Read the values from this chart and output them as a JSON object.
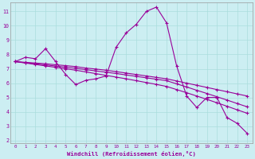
{
  "xlabel": "Windchill (Refroidissement éolien,°C)",
  "bg_color": "#cceef2",
  "grid_color": "#aadddd",
  "line_color": "#990099",
  "xlim": [
    -0.5,
    23.5
  ],
  "ylim": [
    1.8,
    11.6
  ],
  "yticks": [
    2,
    3,
    4,
    5,
    6,
    7,
    8,
    9,
    10,
    11
  ],
  "xticks": [
    0,
    1,
    2,
    3,
    4,
    5,
    6,
    7,
    8,
    9,
    10,
    11,
    12,
    13,
    14,
    15,
    16,
    17,
    18,
    19,
    20,
    21,
    22,
    23
  ],
  "series": [
    [
      7.5,
      7.8,
      7.7,
      8.4,
      7.5,
      6.6,
      5.9,
      6.2,
      6.3,
      6.5,
      8.5,
      9.5,
      10.1,
      11.0,
      11.3,
      10.2,
      7.2,
      5.1,
      4.3,
      5.0,
      5.0,
      3.6,
      3.2,
      2.5
    ],
    [
      7.5,
      7.45,
      7.4,
      7.35,
      7.28,
      7.22,
      7.15,
      7.05,
      6.98,
      6.9,
      6.8,
      6.7,
      6.6,
      6.5,
      6.4,
      6.3,
      6.15,
      6.0,
      5.85,
      5.7,
      5.55,
      5.4,
      5.25,
      5.1
    ],
    [
      7.5,
      7.42,
      7.35,
      7.27,
      7.19,
      7.11,
      7.03,
      6.94,
      6.85,
      6.76,
      6.67,
      6.57,
      6.47,
      6.37,
      6.27,
      6.17,
      5.95,
      5.73,
      5.5,
      5.28,
      5.05,
      4.82,
      4.58,
      4.35
    ],
    [
      7.5,
      7.4,
      7.3,
      7.2,
      7.1,
      7.0,
      6.9,
      6.78,
      6.66,
      6.54,
      6.42,
      6.3,
      6.17,
      6.04,
      5.91,
      5.77,
      5.55,
      5.33,
      5.1,
      4.87,
      4.63,
      4.39,
      4.14,
      3.9
    ]
  ]
}
